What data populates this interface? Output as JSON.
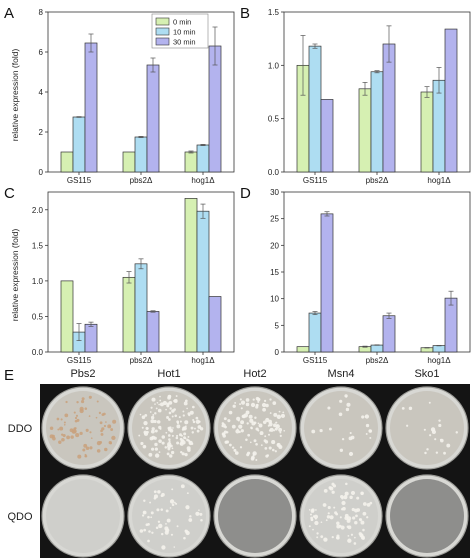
{
  "legend": [
    "0 min",
    "10 min",
    "30 min"
  ],
  "colors": {
    "s0": "#d6f0b2",
    "s1": "#aeddf2",
    "s2": "#b3b3ee",
    "edge": "#333333"
  },
  "ylabel": "relative expression (fold)",
  "chart_data": [
    {
      "type": "bar",
      "panel": "A",
      "categories": [
        "GS115",
        "pbs2Δ",
        "hog1Δ"
      ],
      "ylim": [
        0,
        8
      ],
      "yticks": [
        "0",
        "2",
        "4",
        "6",
        "8"
      ],
      "ytick_values": [
        0,
        2,
        4,
        6,
        8
      ],
      "ylabel": "relative expression (fold)",
      "series": [
        {
          "name": "0 min",
          "values": [
            1.0,
            1.0,
            1.0
          ],
          "errors": [
            0.0,
            0.0,
            0.05
          ]
        },
        {
          "name": "10 min",
          "values": [
            2.75,
            1.75,
            1.35
          ],
          "errors": [
            0.02,
            0.03,
            0.03
          ]
        },
        {
          "name": "30 min",
          "values": [
            6.45,
            5.35,
            6.3
          ],
          "errors": [
            0.45,
            0.35,
            0.95
          ]
        }
      ]
    },
    {
      "type": "bar",
      "panel": "B",
      "categories": [
        "GS115",
        "pbs2Δ",
        "hog1Δ"
      ],
      "ylim": [
        0,
        1.5
      ],
      "yticks": [
        "0.0",
        "0.5",
        "1.0",
        "1.5"
      ],
      "ytick_values": [
        0,
        0.5,
        1.0,
        1.5
      ],
      "series": [
        {
          "name": "0 min",
          "values": [
            1.0,
            0.78,
            0.75
          ],
          "errors": [
            0.28,
            0.06,
            0.05
          ]
        },
        {
          "name": "10 min",
          "values": [
            1.18,
            0.94,
            0.86
          ],
          "errors": [
            0.02,
            0.01,
            0.12
          ]
        },
        {
          "name": "30 min",
          "values": [
            0.68,
            1.2,
            1.34
          ],
          "errors": [
            0.0,
            0.17,
            0.0
          ]
        }
      ]
    },
    {
      "type": "bar",
      "panel": "C",
      "categories": [
        "GS115",
        "pbs2Δ",
        "hog1Δ"
      ],
      "ylim": [
        0,
        2.25
      ],
      "yticks": [
        "0.0",
        "0.5",
        "1.0",
        "1.5",
        "2.0"
      ],
      "ytick_values": [
        0,
        0.5,
        1.0,
        1.5,
        2.0
      ],
      "ylabel": "relative expression (fold)",
      "series": [
        {
          "name": "0 min",
          "values": [
            1.0,
            1.05,
            2.16
          ],
          "errors": [
            0.0,
            0.08,
            0.0
          ]
        },
        {
          "name": "10 min",
          "values": [
            0.28,
            1.24,
            1.98
          ],
          "errors": [
            0.12,
            0.07,
            0.1
          ]
        },
        {
          "name": "30 min",
          "values": [
            0.39,
            0.57,
            0.78
          ],
          "errors": [
            0.03,
            0.01,
            0.0
          ]
        }
      ]
    },
    {
      "type": "bar",
      "panel": "D",
      "categories": [
        "GS115",
        "pbs2Δ",
        "hog1Δ"
      ],
      "ylim": [
        0,
        30
      ],
      "yticks": [
        "0",
        "5",
        "10",
        "15",
        "20",
        "25",
        "30"
      ],
      "ytick_values": [
        0,
        5,
        10,
        15,
        20,
        25,
        30
      ],
      "series": [
        {
          "name": "0 min",
          "values": [
            1.0,
            1.0,
            0.8
          ],
          "errors": [
            0.0,
            0.1,
            0.05
          ]
        },
        {
          "name": "10 min",
          "values": [
            7.3,
            1.3,
            1.2
          ],
          "errors": [
            0.3,
            0.05,
            0.05
          ]
        },
        {
          "name": "30 min",
          "values": [
            25.9,
            6.8,
            10.1
          ],
          "errors": [
            0.4,
            0.5,
            1.3
          ]
        }
      ]
    }
  ],
  "panelE": {
    "letter": "E",
    "columns": [
      "Pbs2",
      "Hot1",
      "Hot2",
      "Msn4",
      "Sko1"
    ],
    "rows": [
      "DDO",
      "QDO"
    ],
    "colonies": [
      [
        0.45,
        0.9,
        0.75,
        0.15,
        0.12
      ],
      [
        0.0,
        0.35,
        0.0,
        0.55,
        0.0
      ]
    ]
  }
}
